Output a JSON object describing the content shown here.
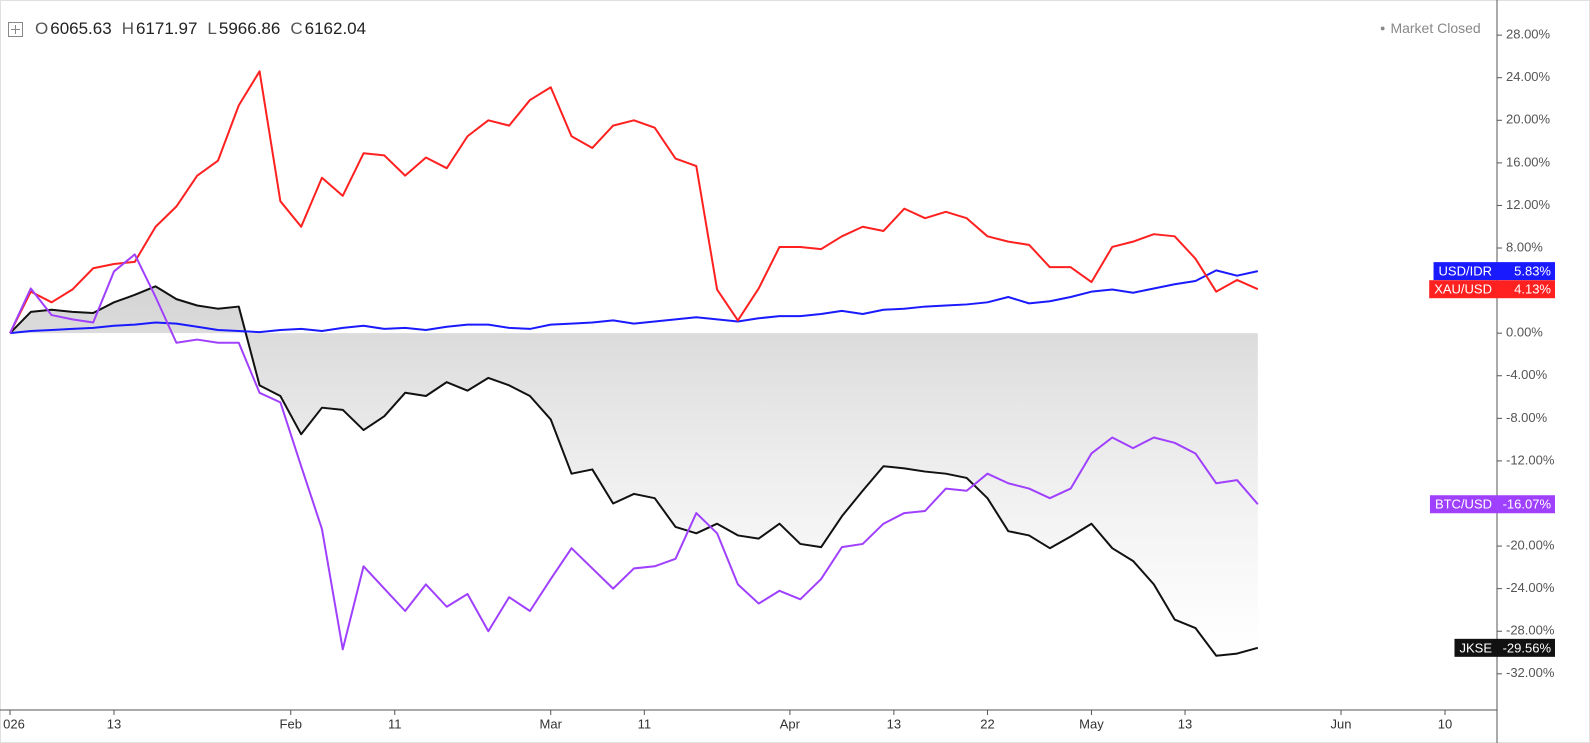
{
  "header": {
    "ohlc": [
      {
        "label": "O",
        "value": 6065.63
      },
      {
        "label": "H",
        "value": 6171.97
      },
      {
        "label": "L",
        "value": 5966.86
      },
      {
        "label": "C",
        "value": 6162.04
      }
    ],
    "status": "Market Closed"
  },
  "chart_data": {
    "type": "line",
    "x": [
      0,
      2,
      4,
      6,
      8,
      10,
      12,
      14,
      16,
      18,
      20,
      22,
      24,
      26,
      28,
      30,
      32,
      34,
      36,
      38,
      40,
      42,
      44,
      46,
      48,
      50,
      52,
      54,
      56,
      58,
      60,
      62,
      64,
      66,
      68,
      70,
      72,
      74,
      76,
      78,
      80,
      82,
      84,
      86,
      88,
      90,
      92,
      94,
      96,
      98,
      100,
      102,
      104,
      106,
      108,
      110,
      112,
      114,
      116,
      118,
      120
    ],
    "xlim": [
      0,
      143
    ],
    "xticks": [
      {
        "value": 0,
        "label": "026"
      },
      {
        "value": 10,
        "label": "13"
      },
      {
        "value": 27,
        "label": "Feb"
      },
      {
        "value": 37,
        "label": "11"
      },
      {
        "value": 52,
        "label": "Mar"
      },
      {
        "value": 61,
        "label": "11"
      },
      {
        "value": 75,
        "label": "Apr"
      },
      {
        "value": 85,
        "label": "13"
      },
      {
        "value": 94,
        "label": "22"
      },
      {
        "value": 104,
        "label": "May"
      },
      {
        "value": 113,
        "label": "13"
      },
      {
        "value": 128,
        "label": "Jun"
      },
      {
        "value": 138,
        "label": "10"
      }
    ],
    "ylim": [
      -35.4,
      31.3
    ],
    "yticks": [
      {
        "value": 28,
        "label": "28.00%"
      },
      {
        "value": 24,
        "label": "24.00%"
      },
      {
        "value": 20,
        "label": "20.00%"
      },
      {
        "value": 16,
        "label": "16.00%"
      },
      {
        "value": 12,
        "label": "12.00%"
      },
      {
        "value": 8,
        "label": "8.00%"
      },
      {
        "value": 4,
        "label": "4.00%"
      },
      {
        "value": 0,
        "label": "0.00%"
      },
      {
        "value": -4,
        "label": "-4.00%"
      },
      {
        "value": -8,
        "label": "-8.00%"
      },
      {
        "value": -12,
        "label": "-12.00%"
      },
      {
        "value": -16,
        "label": "-16.00%"
      },
      {
        "value": -20,
        "label": "-20.00%"
      },
      {
        "value": -24,
        "label": "-24.00%"
      },
      {
        "value": -28,
        "label": "-28.00%"
      },
      {
        "value": -32,
        "label": "-32.00%"
      }
    ],
    "grid": false,
    "series": [
      {
        "name": "JKSE",
        "color": "#111111",
        "area": true,
        "values": [
          0,
          2,
          2.2,
          2,
          1.9,
          2.9,
          3.6,
          4.4,
          3.2,
          2.6,
          2.3,
          2.5,
          -4.9,
          -5.9,
          -9.5,
          -7,
          -7.2,
          -9.1,
          -7.8,
          -5.6,
          -5.9,
          -4.6,
          -5.4,
          -4.2,
          -4.9,
          -5.9,
          -8.1,
          -13.2,
          -12.8,
          -16,
          -15.1,
          -15.5,
          -18.2,
          -18.8,
          -17.9,
          -19,
          -19.3,
          -17.9,
          -19.8,
          -20.1,
          -17.2,
          -14.8,
          -12.5,
          -12.7,
          -13,
          -13.2,
          -13.6,
          -15.5,
          -18.6,
          -19,
          -20.2,
          -19.1,
          -17.9,
          -20.2,
          -21.4,
          -23.6,
          -26.9,
          -27.7,
          -30.3,
          -30.1,
          -29.56
        ],
        "value_labels": [
          null,
          null,
          null,
          null,
          null,
          null,
          null,
          null,
          null,
          null,
          null,
          null,
          null,
          null,
          null,
          null,
          null,
          null,
          null,
          null,
          null,
          null,
          null,
          null,
          null,
          null,
          null,
          null,
          null,
          null,
          null,
          null,
          null,
          null,
          null,
          null,
          null,
          null,
          null,
          null,
          null,
          null,
          null,
          null,
          null,
          null,
          null,
          null,
          null,
          null,
          null,
          null,
          null,
          null,
          null,
          null,
          null,
          null,
          null,
          null,
          "-29.56%"
        ]
      },
      {
        "name": "USD/IDR",
        "color": "#1a1aff",
        "values": [
          0,
          0.2,
          0.3,
          0.4,
          0.5,
          0.7,
          0.8,
          1.0,
          0.9,
          0.6,
          0.3,
          0.2,
          0.1,
          0.3,
          0.4,
          0.2,
          0.5,
          0.7,
          0.4,
          0.5,
          0.3,
          0.6,
          0.8,
          0.8,
          0.5,
          0.4,
          0.8,
          0.9,
          1.0,
          1.2,
          0.9,
          1.1,
          1.3,
          1.5,
          1.3,
          1.1,
          1.4,
          1.6,
          1.6,
          1.8,
          2.1,
          1.8,
          2.2,
          2.3,
          2.5,
          2.6,
          2.7,
          2.9,
          3.4,
          2.8,
          3.0,
          3.4,
          3.9,
          4.1,
          3.8,
          4.2,
          4.6,
          4.9,
          5.9,
          5.4,
          5.83
        ],
        "value_labels": [
          null,
          null,
          null,
          null,
          null,
          null,
          null,
          null,
          null,
          null,
          null,
          null,
          null,
          null,
          null,
          null,
          null,
          null,
          null,
          null,
          null,
          null,
          null,
          null,
          null,
          null,
          null,
          null,
          null,
          null,
          null,
          null,
          null,
          null,
          null,
          null,
          null,
          null,
          null,
          null,
          null,
          null,
          null,
          null,
          null,
          null,
          null,
          null,
          null,
          null,
          null,
          null,
          null,
          null,
          null,
          null,
          null,
          null,
          null,
          null,
          "5.83%"
        ]
      },
      {
        "name": "XAU/USD",
        "color": "#ff2020",
        "values": [
          0,
          3.9,
          2.9,
          4.1,
          6.1,
          6.5,
          6.7,
          10,
          11.9,
          14.8,
          16.2,
          21.4,
          24.6,
          12.4,
          10,
          14.6,
          12.9,
          16.9,
          16.7,
          14.8,
          16.5,
          15.5,
          18.5,
          20,
          19.5,
          21.9,
          23.1,
          18.5,
          17.4,
          19.5,
          20,
          19.3,
          16.4,
          15.7,
          4.1,
          1.2,
          4.2,
          8.1,
          8.1,
          7.9,
          9.1,
          10,
          9.6,
          11.7,
          10.8,
          11.4,
          10.8,
          9.1,
          8.6,
          8.3,
          6.2,
          6.2,
          4.8,
          8.1,
          8.6,
          9.3,
          9.1,
          7,
          3.9,
          5,
          4.13
        ],
        "value_labels": [
          null,
          null,
          null,
          null,
          null,
          null,
          null,
          null,
          null,
          null,
          null,
          null,
          null,
          null,
          null,
          null,
          null,
          null,
          null,
          null,
          null,
          null,
          null,
          null,
          null,
          null,
          null,
          null,
          null,
          null,
          null,
          null,
          null,
          null,
          null,
          null,
          null,
          null,
          null,
          null,
          null,
          null,
          null,
          null,
          null,
          null,
          null,
          null,
          null,
          null,
          null,
          null,
          null,
          null,
          null,
          null,
          null,
          null,
          null,
          null,
          "4.13%"
        ]
      },
      {
        "name": "BTC/USD",
        "color": "#a040ff",
        "values": [
          0,
          4.2,
          1.7,
          1.3,
          1,
          5.8,
          7.4,
          3.4,
          -0.9,
          -0.6,
          -0.9,
          -0.9,
          -5.6,
          -6.5,
          -12.5,
          -18.4,
          -29.7,
          -21.9,
          -24,
          -26.1,
          -23.6,
          -25.7,
          -24.5,
          -28,
          -24.8,
          -26.1,
          -23.1,
          -20.2,
          -22.1,
          -24,
          -22.1,
          -21.9,
          -21.2,
          -16.9,
          -18.8,
          -23.6,
          -25.4,
          -24.2,
          -25,
          -23.1,
          -20.1,
          -19.8,
          -17.9,
          -16.9,
          -16.7,
          -14.6,
          -14.8,
          -13.2,
          -14.1,
          -14.6,
          -15.5,
          -14.6,
          -11.3,
          -9.8,
          -10.8,
          -9.8,
          -10.3,
          -11.3,
          -14.1,
          -13.8,
          -16.07
        ],
        "value_labels": [
          null,
          null,
          null,
          null,
          null,
          null,
          null,
          null,
          null,
          null,
          null,
          null,
          null,
          null,
          null,
          null,
          null,
          null,
          null,
          null,
          null,
          null,
          null,
          null,
          null,
          null,
          null,
          null,
          null,
          null,
          null,
          null,
          null,
          null,
          null,
          null,
          null,
          null,
          null,
          null,
          null,
          null,
          null,
          null,
          null,
          null,
          null,
          null,
          null,
          null,
          null,
          null,
          null,
          null,
          null,
          null,
          null,
          null,
          null,
          null,
          "-16.07%"
        ]
      }
    ]
  }
}
